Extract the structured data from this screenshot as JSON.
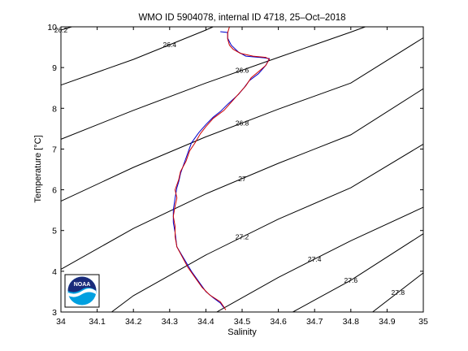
{
  "chart_data": {
    "type": "line",
    "title": "WMO ID 5904078, internal ID 4718, 25–Oct–2018",
    "xlabel": "Salinity",
    "ylabel": "Temperature [°C]",
    "xlim": [
      34,
      35
    ],
    "ylim": [
      3,
      10
    ],
    "xticks": [
      "34",
      "34.1",
      "34.2",
      "34.3",
      "34.4",
      "34.5",
      "34.6",
      "34.7",
      "34.8",
      "34.9",
      "35"
    ],
    "yticks": [
      "3",
      "4",
      "5",
      "6",
      "7",
      "8",
      "9",
      "10"
    ],
    "grid": false,
    "logo": "NOAA",
    "density_contours": [
      {
        "label": "26.2",
        "points": [
          [
            34.0,
            9.92
          ],
          [
            34.03,
            10.0
          ]
        ]
      },
      {
        "label": "26.4",
        "points": [
          [
            34.0,
            8.57
          ],
          [
            34.2,
            9.2
          ],
          [
            34.4,
            9.92
          ],
          [
            34.42,
            10.0
          ]
        ]
      },
      {
        "label": "26.6",
        "points": [
          [
            34.0,
            7.24
          ],
          [
            34.2,
            7.95
          ],
          [
            34.4,
            8.62
          ],
          [
            34.6,
            9.25
          ],
          [
            34.8,
            9.87
          ],
          [
            34.84,
            10.0
          ]
        ]
      },
      {
        "label": "26.8",
        "points": [
          [
            34.0,
            5.72
          ],
          [
            34.2,
            6.55
          ],
          [
            34.4,
            7.3
          ],
          [
            34.6,
            7.98
          ],
          [
            34.8,
            8.62
          ],
          [
            35.0,
            9.73
          ]
        ]
      },
      {
        "label": "27",
        "points": [
          [
            34.0,
            4.05
          ],
          [
            34.2,
            5.05
          ],
          [
            34.4,
            5.9
          ],
          [
            34.6,
            6.65
          ],
          [
            34.8,
            7.35
          ],
          [
            35.0,
            8.48
          ]
        ]
      },
      {
        "label": "27.2",
        "points": [
          [
            34.14,
            3.0
          ],
          [
            34.2,
            3.4
          ],
          [
            34.4,
            4.4
          ],
          [
            34.6,
            5.28
          ],
          [
            34.8,
            6.05
          ],
          [
            35.0,
            7.12
          ]
        ]
      },
      {
        "label": "27.4",
        "points": [
          [
            34.43,
            3.0
          ],
          [
            34.6,
            3.85
          ],
          [
            34.8,
            4.75
          ],
          [
            35.0,
            5.57
          ]
        ]
      },
      {
        "label": "27.6",
        "points": [
          [
            34.64,
            3.0
          ],
          [
            34.8,
            3.78
          ],
          [
            35.0,
            4.92
          ]
        ]
      },
      {
        "label": "27.8",
        "points": [
          [
            34.86,
            3.0
          ],
          [
            35.0,
            3.96
          ]
        ]
      }
    ],
    "series": [
      {
        "color": "#0000cc",
        "points": [
          [
            34.44,
            9.88
          ],
          [
            34.46,
            9.86
          ],
          [
            34.46,
            9.72
          ],
          [
            34.47,
            9.55
          ],
          [
            34.49,
            9.38
          ],
          [
            34.51,
            9.28
          ],
          [
            34.56,
            9.24
          ],
          [
            34.575,
            9.22
          ],
          [
            34.565,
            9.05
          ],
          [
            34.545,
            8.85
          ],
          [
            34.52,
            8.68
          ],
          [
            34.505,
            8.5
          ],
          [
            34.49,
            8.34
          ],
          [
            34.46,
            8.1
          ],
          [
            34.44,
            7.92
          ],
          [
            34.42,
            7.78
          ],
          [
            34.4,
            7.6
          ],
          [
            34.38,
            7.4
          ],
          [
            34.36,
            7.15
          ],
          [
            34.35,
            6.9
          ],
          [
            34.34,
            6.65
          ],
          [
            34.33,
            6.4
          ],
          [
            34.325,
            6.2
          ],
          [
            34.32,
            6.05
          ],
          [
            34.315,
            5.8
          ],
          [
            34.31,
            5.5
          ],
          [
            34.31,
            5.2
          ],
          [
            34.315,
            4.95
          ],
          [
            34.32,
            4.6
          ],
          [
            34.34,
            4.3
          ],
          [
            34.36,
            4.0
          ],
          [
            34.38,
            3.75
          ],
          [
            34.4,
            3.5
          ],
          [
            34.42,
            3.35
          ],
          [
            34.44,
            3.22
          ],
          [
            34.45,
            3.1
          ]
        ]
      },
      {
        "color": "#cc0000",
        "points": [
          [
            34.465,
            10.0
          ],
          [
            34.46,
            9.85
          ],
          [
            34.46,
            9.7
          ],
          [
            34.465,
            9.55
          ],
          [
            34.475,
            9.45
          ],
          [
            34.495,
            9.35
          ],
          [
            34.53,
            9.28
          ],
          [
            34.565,
            9.25
          ],
          [
            34.575,
            9.2
          ],
          [
            34.565,
            9.05
          ],
          [
            34.545,
            8.9
          ],
          [
            34.525,
            8.75
          ],
          [
            34.51,
            8.55
          ],
          [
            34.495,
            8.4
          ],
          [
            34.47,
            8.15
          ],
          [
            34.45,
            7.95
          ],
          [
            34.42,
            7.75
          ],
          [
            34.4,
            7.55
          ],
          [
            34.385,
            7.38
          ],
          [
            34.37,
            7.15
          ],
          [
            34.355,
            6.95
          ],
          [
            34.345,
            6.7
          ],
          [
            34.33,
            6.45
          ],
          [
            34.325,
            6.25
          ],
          [
            34.315,
            6.0
          ],
          [
            34.32,
            5.8
          ],
          [
            34.315,
            5.6
          ],
          [
            34.31,
            5.35
          ],
          [
            34.315,
            5.1
          ],
          [
            34.315,
            4.85
          ],
          [
            34.32,
            4.6
          ],
          [
            34.335,
            4.35
          ],
          [
            34.35,
            4.1
          ],
          [
            34.37,
            3.85
          ],
          [
            34.39,
            3.6
          ],
          [
            34.41,
            3.42
          ],
          [
            34.44,
            3.25
          ],
          [
            34.45,
            3.12
          ],
          [
            34.455,
            3.05
          ]
        ]
      }
    ]
  }
}
